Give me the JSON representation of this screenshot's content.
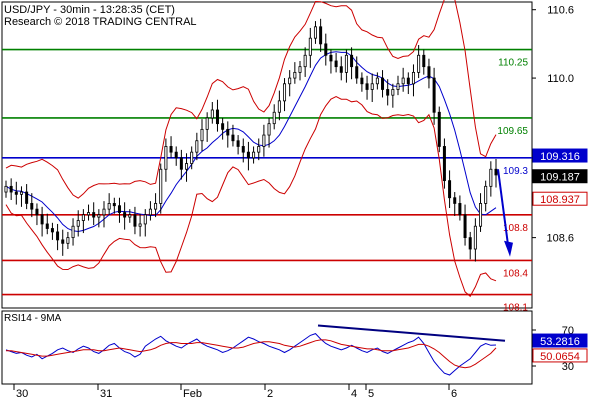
{
  "header": {
    "line1": "USD/JPY - 30min - 13:28:35 (CET)",
    "line2": "Research © 2018 TRADING CENTRAL"
  },
  "colors": {
    "candle": "#000000",
    "bollinger": "#cc0000",
    "ma": "#0000cc",
    "support_resistance_green": "#008000",
    "support_red": "#cc0000",
    "pivot_blue": "#0000cc",
    "rsi": "#0000cc",
    "rsi_ma": "#cc0000",
    "arrow": "#0000cc",
    "current_price_box": "#000000",
    "level_box_blue": "#0000cc",
    "level_box_red": "#cc0000"
  },
  "chart_data": [
    {
      "type": "candlestick",
      "title": "USD/JPY - 30min",
      "price_axis": {
        "ticks": [
          110.6,
          110.0,
          108.6
        ],
        "range": [
          108.0,
          110.65
        ]
      },
      "x_axis": {
        "ticks": [
          "30",
          "31",
          "Feb",
          "2",
          "4",
          "5",
          "6"
        ]
      },
      "horizontal_levels": [
        {
          "value": 110.25,
          "label": "110.25",
          "color": "#008000"
        },
        {
          "value": 109.65,
          "label": "109.65",
          "color": "#008000"
        },
        {
          "value": 109.3,
          "label": "109.3",
          "color": "#0000cc"
        },
        {
          "value": 108.8,
          "label": "108.8",
          "color": "#cc0000"
        },
        {
          "value": 108.4,
          "label": "108.4",
          "color": "#cc0000"
        },
        {
          "value": 108.1,
          "label": "108.1",
          "color": "#cc0000"
        }
      ],
      "price_boxes": [
        {
          "label": "109.316",
          "value": 109.316,
          "style": "blue"
        },
        {
          "label": "109.187",
          "value": 109.187,
          "style": "black"
        },
        {
          "label": "108.937",
          "value": 108.937,
          "style": "red"
        }
      ],
      "close_series": [
        109.05,
        109.0,
        108.98,
        109.0,
        108.9,
        108.85,
        108.8,
        108.72,
        108.68,
        108.65,
        108.58,
        108.55,
        108.6,
        108.7,
        108.75,
        108.8,
        108.82,
        108.78,
        108.8,
        108.85,
        108.9,
        108.88,
        108.82,
        108.78,
        108.8,
        108.7,
        108.72,
        108.8,
        108.85,
        108.9,
        109.2,
        109.4,
        109.35,
        109.3,
        109.2,
        109.25,
        109.35,
        109.45,
        109.55,
        109.65,
        109.72,
        109.6,
        109.55,
        109.5,
        109.45,
        109.4,
        109.35,
        109.3,
        109.35,
        109.4,
        109.5,
        109.6,
        109.7,
        109.8,
        109.95,
        110.0,
        110.05,
        110.1,
        110.2,
        110.35,
        110.45,
        110.3,
        110.2,
        110.15,
        110.1,
        110.05,
        110.2,
        110.1,
        110.0,
        109.95,
        109.9,
        109.95,
        110.0,
        109.9,
        109.85,
        109.9,
        109.95,
        110.0,
        109.95,
        110.05,
        110.2,
        110.1,
        110.0,
        109.7,
        109.4,
        109.1,
        108.95,
        108.9,
        108.8,
        108.6,
        108.5,
        108.7,
        108.9,
        109.05,
        109.2,
        109.15
      ],
      "arrow": {
        "direction": "down",
        "from": 109.2,
        "to": 108.45
      }
    },
    {
      "type": "line",
      "title": "RSI14 - 9MA",
      "y_axis": {
        "ticks": [
          70,
          30
        ],
        "range": [
          10,
          90
        ]
      },
      "series": [
        {
          "name": "RSI14",
          "values": [
            48,
            46,
            44,
            45,
            42,
            40,
            43,
            38,
            41,
            44,
            48,
            50,
            47,
            45,
            49,
            52,
            50,
            46,
            44,
            48,
            53,
            55,
            50,
            46,
            44,
            40,
            43,
            52,
            56,
            60,
            63,
            58,
            55,
            52,
            50,
            54,
            57,
            60,
            55,
            52,
            50,
            48,
            45,
            47,
            50,
            54,
            58,
            62,
            60,
            57,
            55,
            52,
            50,
            48,
            45,
            48,
            52,
            56,
            60,
            64,
            66,
            60,
            55,
            52,
            50,
            48,
            50,
            53,
            50,
            47,
            45,
            48,
            50,
            46,
            44,
            47,
            50,
            53,
            56,
            58,
            62,
            55,
            45,
            35,
            28,
            22,
            20,
            25,
            30,
            34,
            38,
            45,
            52,
            55,
            53,
            53.28
          ]
        },
        {
          "name": "9MA",
          "values": [
            47,
            47,
            46,
            45,
            44,
            43,
            42,
            41,
            41,
            42,
            43,
            44,
            45,
            46,
            47,
            48,
            48,
            48,
            47,
            47,
            48,
            49,
            50,
            49,
            48,
            47,
            46,
            47,
            48,
            50,
            53,
            55,
            56,
            56,
            55,
            55,
            55,
            56,
            56,
            55,
            54,
            53,
            52,
            51,
            50,
            50,
            51,
            53,
            55,
            56,
            57,
            57,
            56,
            55,
            53,
            52,
            51,
            52,
            54,
            56,
            58,
            59,
            59,
            58,
            56,
            54,
            53,
            52,
            51,
            50,
            49,
            49,
            48,
            47,
            47,
            47,
            48,
            49,
            50,
            52,
            54,
            54,
            52,
            49,
            45,
            40,
            35,
            31,
            29,
            28,
            29,
            32,
            36,
            40,
            44,
            50.07
          ]
        }
      ],
      "price_boxes": [
        {
          "label": "53.2816",
          "value": 53.28,
          "style": "blue"
        },
        {
          "label": "50.0654",
          "value": 50.07,
          "style": "red"
        }
      ],
      "trendline": {
        "from": 75,
        "to": 58
      }
    }
  ]
}
